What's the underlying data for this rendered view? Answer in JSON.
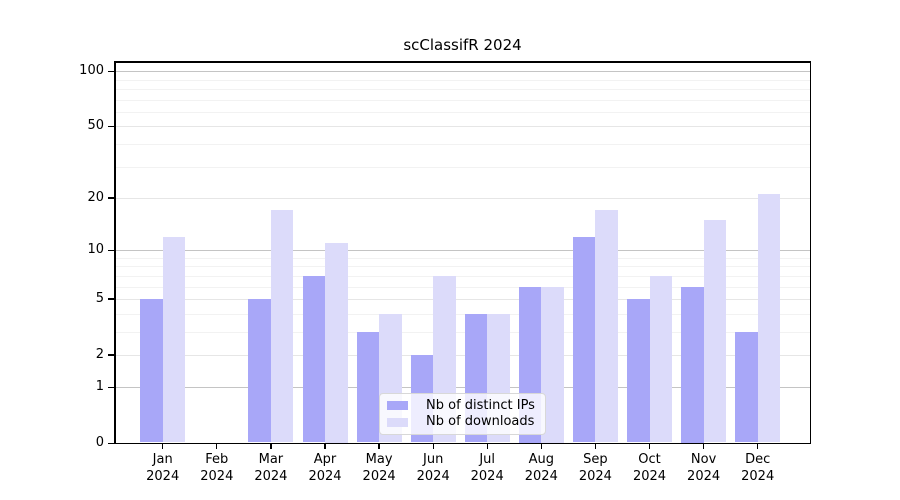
{
  "chart_data": {
    "type": "bar",
    "title": "scClassifR 2024",
    "xlabel": "",
    "ylabel": "",
    "categories": [
      "Jan",
      "Feb",
      "Mar",
      "Apr",
      "May",
      "Jun",
      "Jul",
      "Aug",
      "Sep",
      "Oct",
      "Nov",
      "Dec"
    ],
    "x_year_label": "2024",
    "series": [
      {
        "name": "Nb of distinct IPs",
        "color": "#a8a7f8",
        "values": [
          5,
          0,
          5,
          7,
          3,
          2,
          4,
          6,
          12,
          5,
          6,
          3
        ]
      },
      {
        "name": "Nb of downloads",
        "color": "#dcdbfa",
        "values": [
          12,
          0,
          17,
          11,
          4,
          7,
          4,
          6,
          17,
          7,
          15,
          21
        ]
      }
    ],
    "y_scale": "log10(1+v)",
    "y_ticks": [
      0,
      1,
      2,
      5,
      10,
      20,
      50,
      100
    ],
    "ylim": [
      0,
      112
    ],
    "grid": "on",
    "gridlines_major": [
      1,
      10,
      100
    ],
    "gridlines_mid": [
      2,
      5,
      20,
      50
    ],
    "gridlines_minor": [
      3,
      4,
      6,
      7,
      8,
      9,
      30,
      40,
      60,
      70,
      80,
      90
    ],
    "legend_position": "lower-center"
  },
  "legend": {
    "item1": "Nb of distinct IPs",
    "item2": "Nb of downloads"
  }
}
